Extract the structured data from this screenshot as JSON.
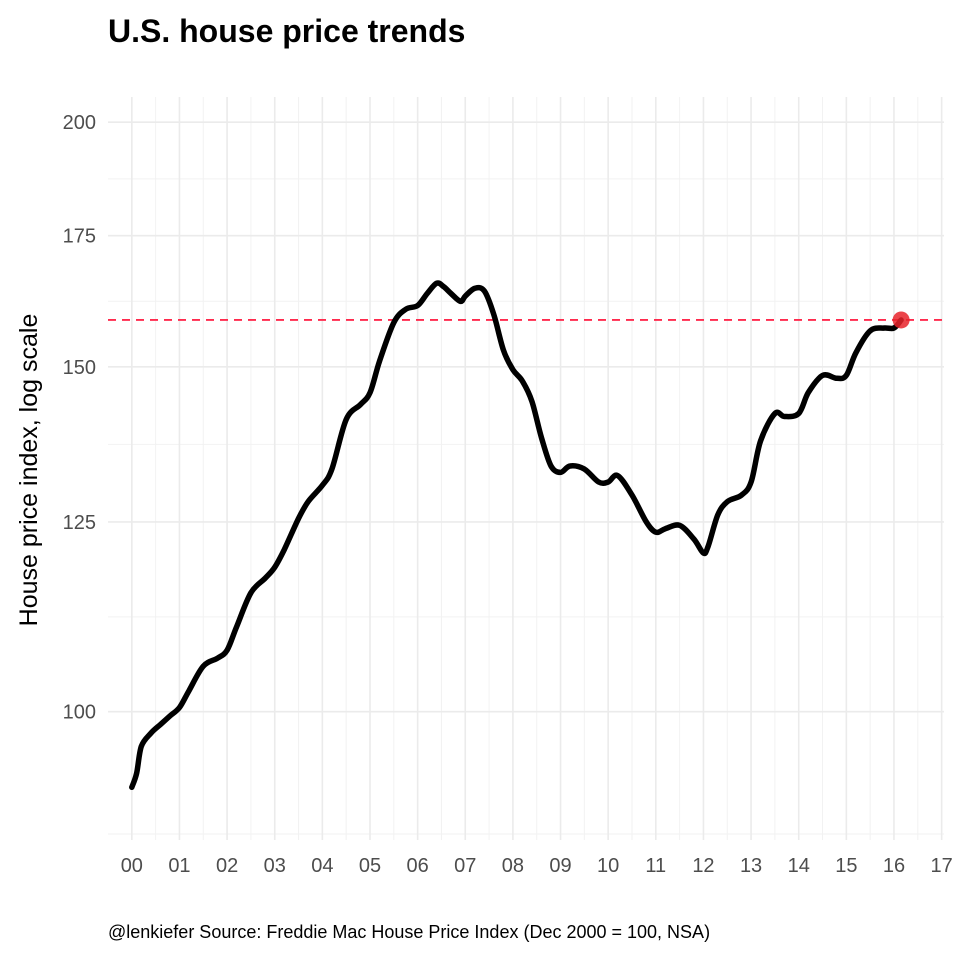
{
  "chart_data": {
    "type": "line",
    "title": "U.S. house price trends",
    "ylabel": "House price index, log scale",
    "xlabel": "",
    "caption": "@lenkiefer Source: Freddie Mac House Price Index (Dec 2000 = 100, NSA)",
    "y_scale": "log",
    "ylim": [
      86,
      206
    ],
    "xlim": [
      1999.5,
      2017.05
    ],
    "y_ticks": [
      100,
      125,
      150,
      175,
      200
    ],
    "y_tick_labels": [
      "100",
      "125",
      "150",
      "175",
      "200"
    ],
    "x_ticks": [
      2000,
      2001,
      2002,
      2003,
      2004,
      2005,
      2006,
      2007,
      2008,
      2009,
      2010,
      2011,
      2012,
      2013,
      2014,
      2015,
      2016,
      2017
    ],
    "x_tick_labels": [
      "00",
      "01",
      "02",
      "03",
      "04",
      "05",
      "06",
      "07",
      "08",
      "09",
      "10",
      "11",
      "12",
      "13",
      "14",
      "15",
      "16",
      "17"
    ],
    "grid": true,
    "legend": "none",
    "colors": {
      "line": "#000000",
      "reference": "#ff2a4d",
      "point": "#e8232a"
    },
    "series": [
      {
        "x": [
          2000.0,
          2000.1,
          2000.2,
          2000.4,
          2000.6,
          2000.8,
          2001.0,
          2001.2,
          2001.5,
          2001.8,
          2002.0,
          2002.2,
          2002.5,
          2002.8,
          2003.0,
          2003.2,
          2003.5,
          2003.7,
          2004.0,
          2004.2,
          2004.5,
          2004.8,
          2005.0,
          2005.2,
          2005.5,
          2005.75,
          2006.0,
          2006.2,
          2006.4,
          2006.55,
          2006.7,
          2006.9,
          2007.0,
          2007.2,
          2007.4,
          2007.6,
          2007.8,
          2008.0,
          2008.2,
          2008.4,
          2008.6,
          2008.8,
          2009.0,
          2009.2,
          2009.5,
          2009.8,
          2010.0,
          2010.2,
          2010.5,
          2010.8,
          2011.0,
          2011.2,
          2011.5,
          2011.8,
          2012.0,
          2012.1,
          2012.3,
          2012.5,
          2012.8,
          2013.0,
          2013.2,
          2013.5,
          2013.7,
          2014.0,
          2014.2,
          2014.5,
          2014.8,
          2015.0,
          2015.2,
          2015.5,
          2015.8,
          2016.0,
          2016.15
        ],
        "y": [
          91.5,
          93,
          96,
          97.5,
          98.5,
          99.5,
          100.5,
          102.5,
          105.5,
          106.5,
          107.5,
          110.5,
          115,
          117,
          118.5,
          121,
          125.5,
          128,
          130.5,
          133,
          141,
          143.5,
          145.5,
          151,
          158,
          160.5,
          161.2,
          163.5,
          165.5,
          164.8,
          163.5,
          162,
          163,
          164.5,
          164,
          159.5,
          153,
          149.5,
          147.5,
          144,
          138,
          133.5,
          132.5,
          133.5,
          133,
          131,
          131,
          132,
          129,
          125,
          123.5,
          124,
          124.5,
          122.5,
          120.5,
          121.5,
          126,
          128,
          129,
          131,
          137.5,
          142,
          141.5,
          142,
          145.5,
          148.5,
          148,
          148.5,
          152.5,
          156.5,
          157,
          157,
          158.5
        ]
      }
    ],
    "reference_line": {
      "y": 158.5,
      "style": "dashed"
    },
    "highlight_point": {
      "x": 2016.15,
      "y": 158.5
    }
  }
}
